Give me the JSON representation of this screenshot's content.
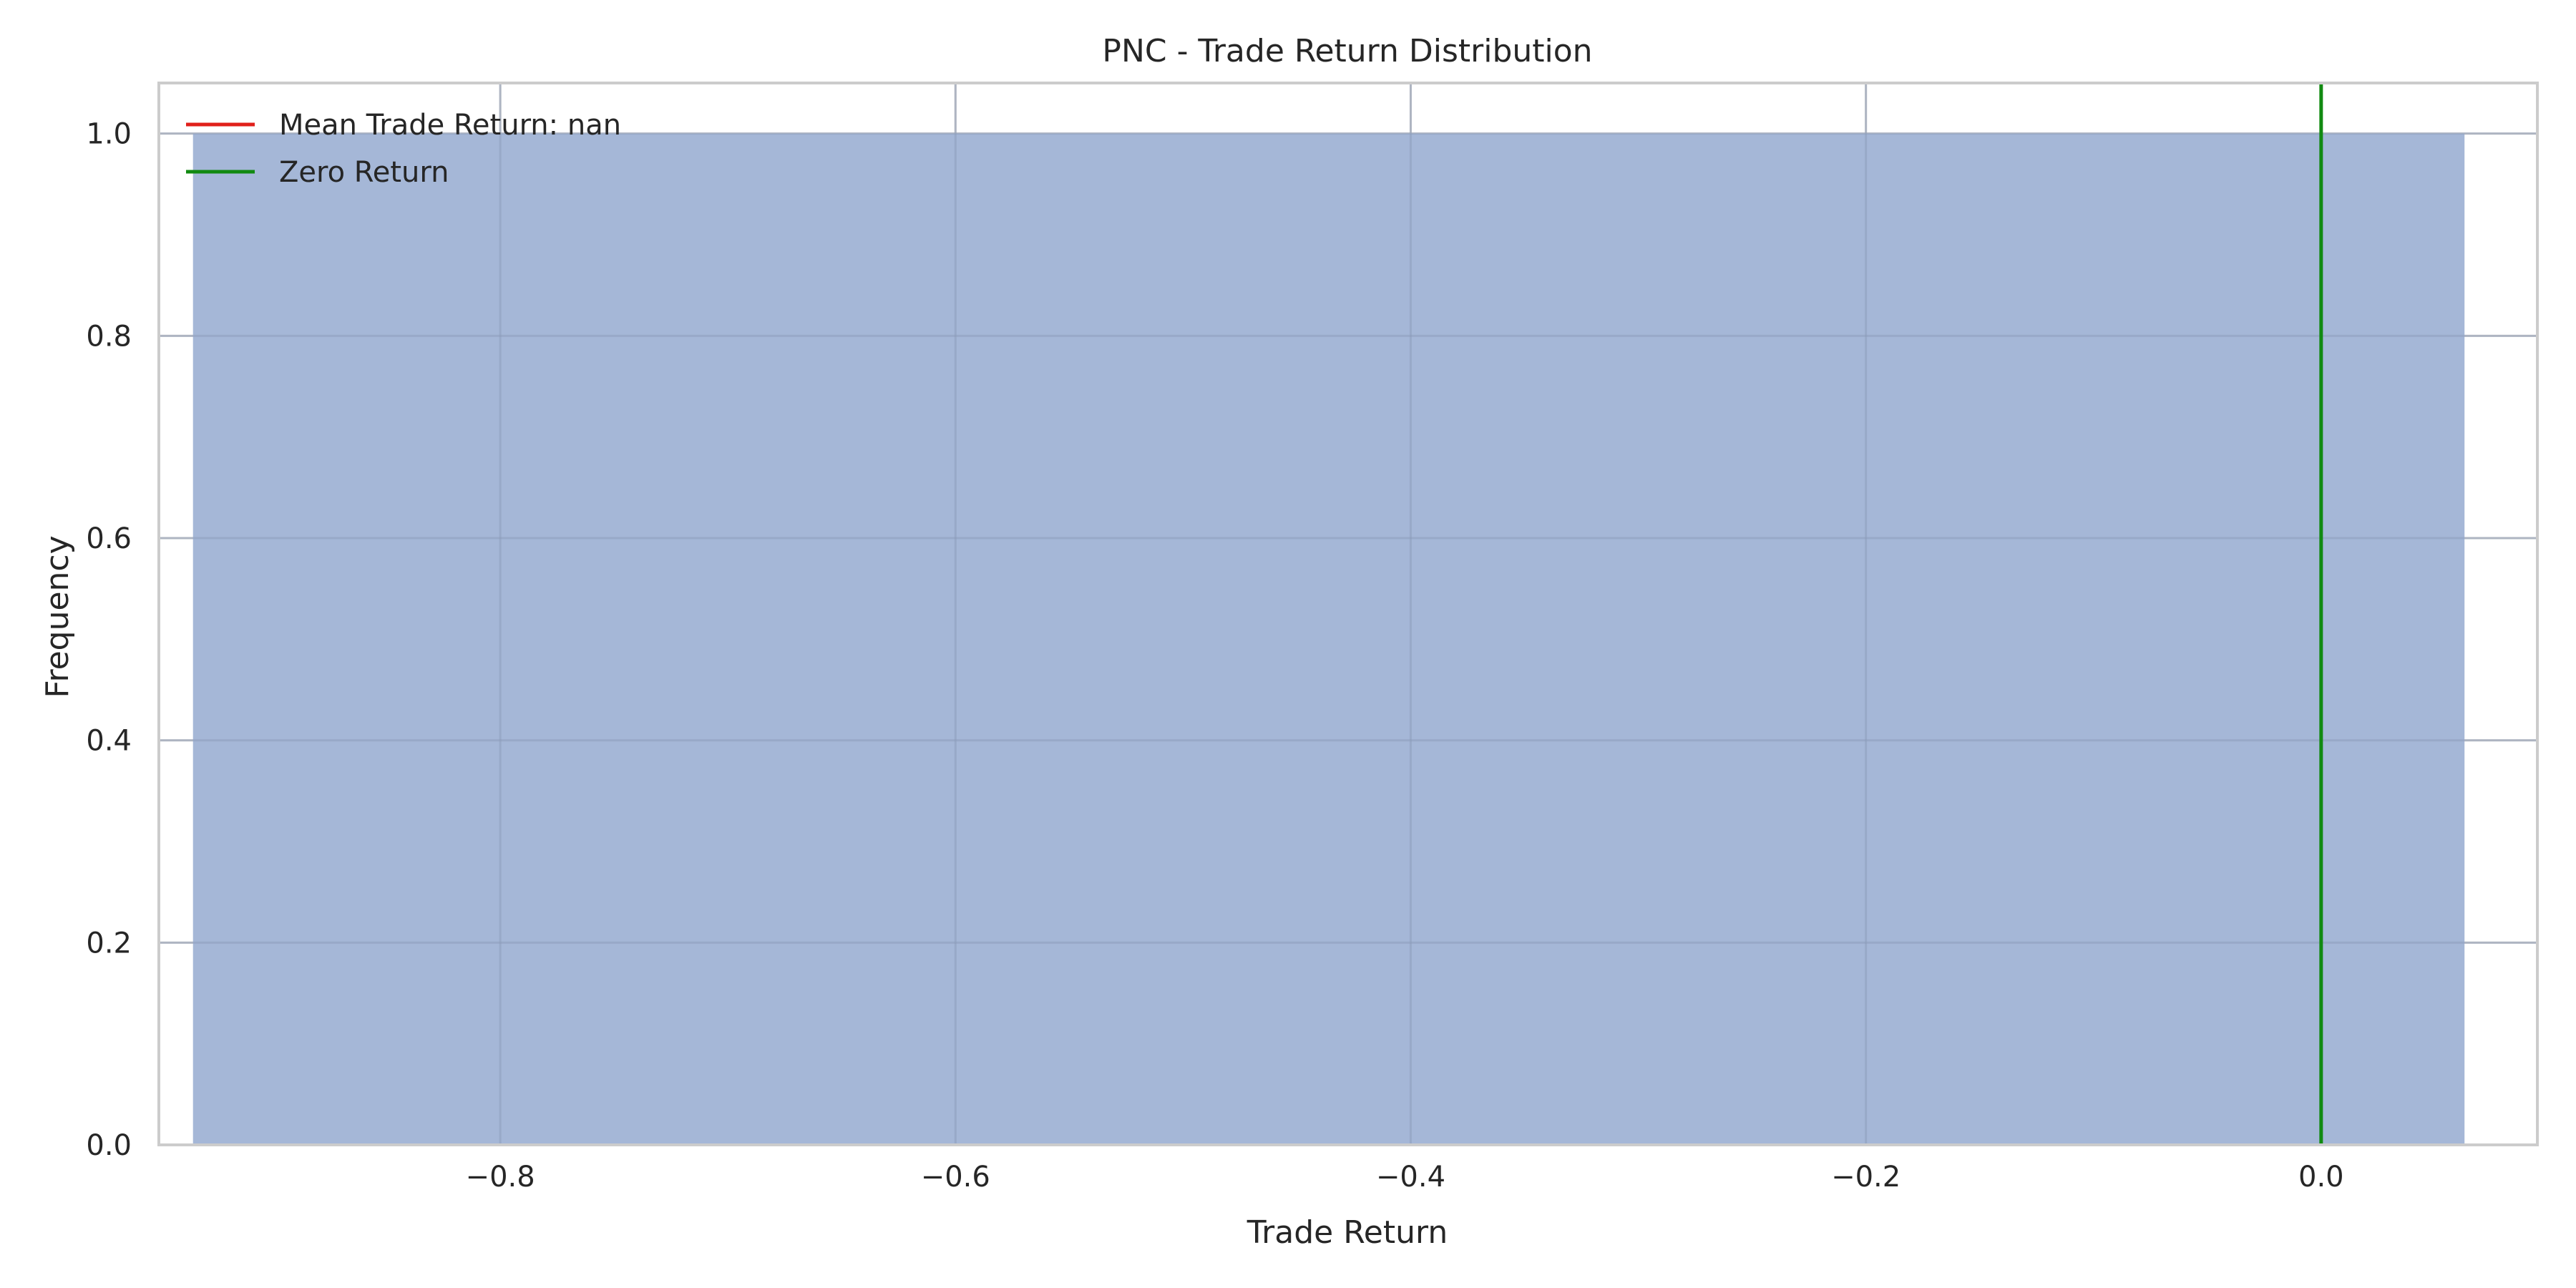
{
  "chart_data": {
    "type": "bar",
    "title": "PNC - Trade Return Distribution",
    "xlabel": "Trade Return",
    "ylabel": "Frequency",
    "xlim": [
      -0.95,
      0.095
    ],
    "ylim": [
      0,
      1.05
    ],
    "xticks": [
      -0.8,
      -0.6,
      -0.4,
      -0.2,
      0.0
    ],
    "xtick_labels": [
      "−0.8",
      "−0.6",
      "−0.4",
      "−0.2",
      "0.0"
    ],
    "yticks": [
      0,
      0.2,
      0.4,
      0.6,
      0.8,
      1.0
    ],
    "ytick_labels": [
      "0.0",
      "0.2",
      "0.4",
      "0.6",
      "0.8",
      "1.0"
    ],
    "grid": true,
    "legend_position": "top-left",
    "bins": [
      {
        "x0": -0.935,
        "x1": 0.063,
        "value": 1
      }
    ],
    "bar_color": "#a5b7d7",
    "vlines": [
      {
        "label": "Mean Trade Return: nan",
        "x": null,
        "color": "#e0201b"
      },
      {
        "label": "Zero Return",
        "x": 0.0,
        "color": "#118a11"
      }
    ]
  }
}
